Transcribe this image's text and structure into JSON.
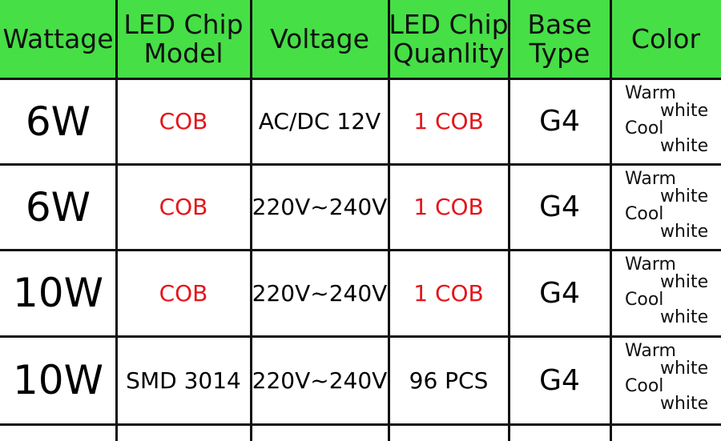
{
  "table": {
    "headers": [
      [
        "Wattage"
      ],
      [
        "LED Chip",
        "Model"
      ],
      [
        "Voltage"
      ],
      [
        "LED Chip",
        "Quanlity"
      ],
      [
        "Base",
        "Type"
      ],
      [
        "Color"
      ]
    ],
    "rows": [
      [
        "6W",
        "COB",
        "AC/DC 12V",
        "1 COB",
        "G4",
        [
          "Warm",
          "white",
          "Cool",
          "white"
        ]
      ],
      [
        "6W",
        "COB",
        "220V~240V",
        "1 COB",
        "G4",
        [
          "Warm",
          "white",
          "Cool",
          "white"
        ]
      ],
      [
        "10W",
        "COB",
        "220V~240V",
        "1 COB",
        "G4",
        [
          "Warm",
          "white",
          "Cool",
          "white"
        ]
      ],
      [
        "10W",
        "SMD 3014",
        "220V~240V",
        "96 PCS",
        "G4",
        [
          "Warm",
          "white",
          "Cool",
          "white"
        ]
      ]
    ]
  }
}
